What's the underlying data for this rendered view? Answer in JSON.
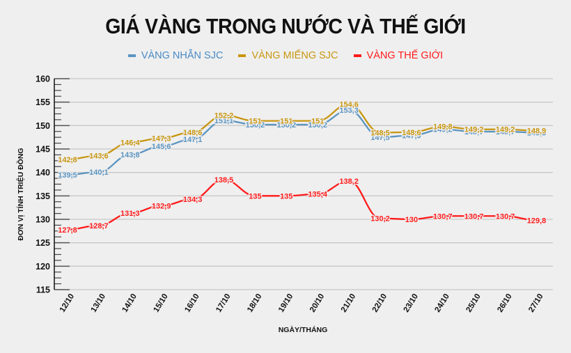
{
  "title": "GIÁ VÀNG TRONG NƯỚC VÀ THẾ GIỚI",
  "legend": [
    {
      "label": "VÀNG NHẪN SJC",
      "color": "#5b94c1"
    },
    {
      "label": "VÀNG MIẾNG SJC",
      "color": "#c8960f"
    },
    {
      "label": "VÀNG THẾ GIỚI",
      "color": "#ff1a1a"
    }
  ],
  "chart_data": {
    "type": "line",
    "title": "GIÁ VÀNG TRONG NƯỚC VÀ THẾ GIỚI",
    "xlabel": "NGÀY/THÁNG",
    "ylabel": "ĐƠN VỊ TÍNH TRIỆU ĐỒNG",
    "ylim": [
      115,
      160
    ],
    "yticks": [
      115,
      120,
      125,
      130,
      135,
      140,
      145,
      150,
      155,
      160
    ],
    "grid": true,
    "legend_position": "top",
    "categories": [
      "12/10",
      "13/10",
      "14/10",
      "15/10",
      "16/10",
      "17/10",
      "18/10",
      "19/10",
      "20/10",
      "21/10",
      "22/10",
      "23/10",
      "24/10",
      "25/10",
      "26/10",
      "27/10"
    ],
    "series": [
      {
        "name": "VÀNG NHẪN SJC",
        "color": "#5b94c1",
        "values": [
          139.5,
          140.1,
          143.8,
          145.6,
          147.1,
          151.1,
          150.2,
          150.2,
          150.2,
          153.3,
          147.5,
          147.9,
          149.2,
          148.7,
          148.7,
          148.5
        ],
        "labels": [
          "139,5",
          "140,1",
          "143,8",
          "145,6",
          "147,1",
          "151,1",
          "150,2",
          "150,2",
          "150,2",
          "153,3",
          "147,5",
          "147,9",
          "149,2",
          "148,7",
          "148,7",
          "148,5"
        ]
      },
      {
        "name": "VÀNG MIẾNG SJC",
        "color": "#c8960f",
        "values": [
          142.8,
          143.6,
          146.4,
          147.3,
          148.6,
          152.2,
          151,
          151,
          151,
          154.6,
          148.5,
          148.6,
          149.8,
          149.2,
          149.2,
          148.9
        ],
        "labels": [
          "142,8",
          "143,6",
          "146,4",
          "147,3",
          "148,6",
          "152,2",
          "151",
          "151",
          "151",
          "154,6",
          "148,5",
          "148,6",
          "149,8",
          "149,2",
          "149,2",
          "148,9"
        ]
      },
      {
        "name": "VÀNG THẾ GIỚI",
        "color": "#ff1a1a",
        "values": [
          127.8,
          128.7,
          131.3,
          132.9,
          134.3,
          138.5,
          135,
          135,
          135.4,
          138.2,
          130.2,
          130,
          130.7,
          130.7,
          130.7,
          129.8
        ],
        "labels": [
          "127,8",
          "128,7",
          "131,3",
          "132,9",
          "134,3",
          "138,5",
          "135",
          "135",
          "135,4",
          "138,2",
          "130,2",
          "130",
          "130,7",
          "130,7",
          "130,7",
          "129,8"
        ]
      }
    ]
  }
}
